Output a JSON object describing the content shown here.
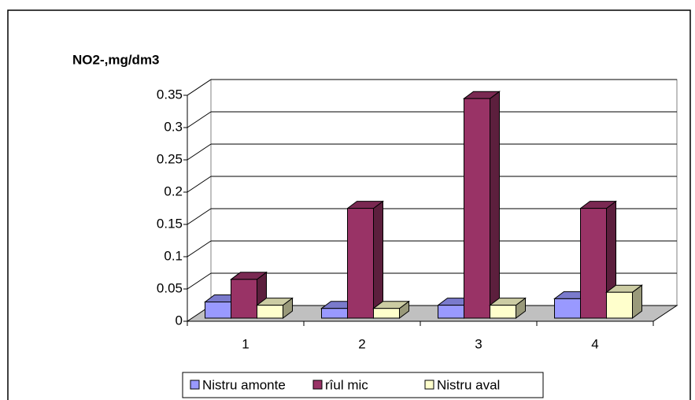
{
  "chart_data": {
    "type": "bar3d",
    "y_label": "NO2-,mg/dm3",
    "categories": [
      "1",
      "2",
      "3",
      "4"
    ],
    "series": [
      {
        "name": "Nistru amonte",
        "color": "#9999ff",
        "values": [
          0.025,
          0.015,
          0.02,
          0.03
        ]
      },
      {
        "name": "rîul mic",
        "color": "#993366",
        "values": [
          0.06,
          0.17,
          0.34,
          0.17
        ]
      },
      {
        "name": "Nistru aval",
        "color": "#ffffcc",
        "values": [
          0.02,
          0.015,
          0.02,
          0.04
        ]
      }
    ],
    "ylim": [
      0,
      0.35
    ],
    "yticks": [
      0,
      0.05,
      0.1,
      0.15,
      0.2,
      0.25,
      0.3,
      0.35
    ],
    "grid": true,
    "legend": "bottom"
  }
}
